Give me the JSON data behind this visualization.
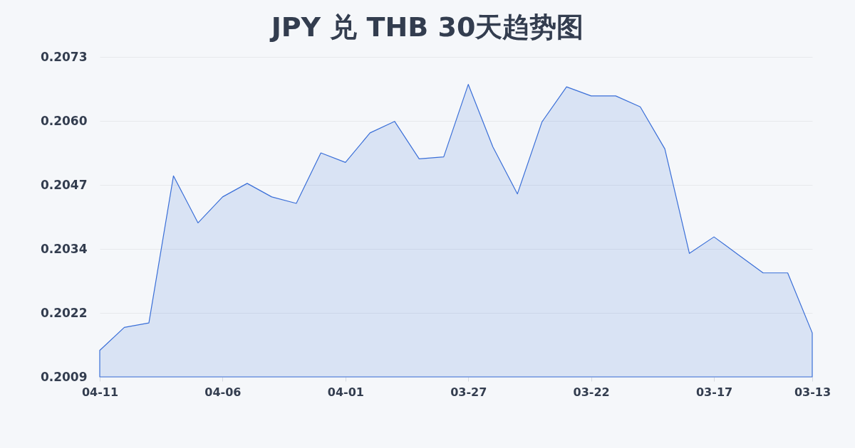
{
  "chart_data": {
    "type": "area",
    "title": "JPY 兑 THB 30天趋势图",
    "categories": [
      "04-11",
      null,
      null,
      null,
      null,
      "04-06",
      null,
      null,
      null,
      null,
      "04-01",
      null,
      null,
      null,
      null,
      "03-27",
      null,
      null,
      null,
      null,
      "03-22",
      null,
      null,
      null,
      null,
      "03-17",
      null,
      null,
      null,
      "03-13"
    ],
    "series": [
      {
        "color": "#3a6fd8",
        "values": [
          0.20141,
          0.20187,
          0.20196,
          0.2049,
          0.20396,
          0.20448,
          0.20475,
          0.20448,
          0.20435,
          0.20536,
          0.20517,
          0.20576,
          0.20599,
          0.20524,
          0.20528,
          0.20673,
          0.20548,
          0.20454,
          0.20598,
          0.20668,
          0.2065,
          0.2065,
          0.20628,
          0.20544,
          0.20335,
          0.20368,
          0.20332,
          0.20296,
          0.20296,
          0.20176
        ]
      }
    ],
    "ylim": [
      0.20088,
      0.20728
    ],
    "yticks": [
      {
        "value": 0.20088,
        "label": "0.2009"
      },
      {
        "value": 0.20216,
        "label": "0.2022"
      },
      {
        "value": 0.20344,
        "label": "0.2034"
      },
      {
        "value": 0.20472,
        "label": "0.2047"
      },
      {
        "value": 0.206,
        "label": "0.2060"
      },
      {
        "value": 0.20728,
        "label": "0.2073"
      }
    ],
    "grid": "y"
  }
}
